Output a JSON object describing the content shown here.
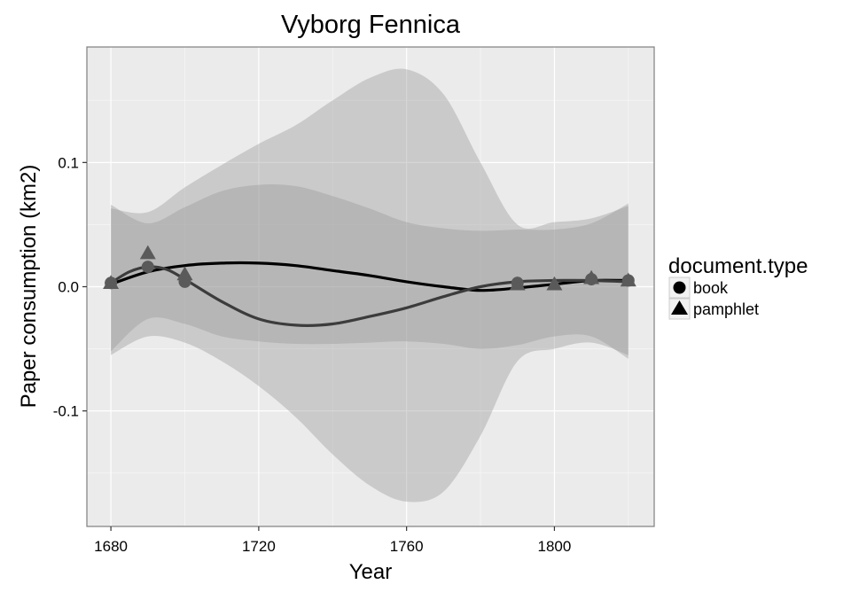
{
  "chart_data": {
    "type": "scatter",
    "title": "Vyborg Fennica",
    "xlabel": "Year",
    "ylabel": "Paper consumption (km2)",
    "xlim": [
      1673.5,
      1827
    ],
    "ylim": [
      -0.193,
      0.193
    ],
    "x_ticks": [
      1680,
      1720,
      1760,
      1800
    ],
    "x_tick_labels": [
      "1680",
      "1720",
      "1760",
      "1800"
    ],
    "y_ticks": [
      -0.1,
      0.0,
      0.1
    ],
    "y_tick_labels": [
      "-0.1",
      "0.0",
      "0.1"
    ],
    "grid": true,
    "legend": {
      "title": "document.type",
      "position": "right"
    },
    "colors": {
      "panel": "#ebebeb",
      "grid": "#ffffff",
      "outer_ribbon": "#d9d9d9",
      "inner_ribbon": "#bebebe",
      "book_line": "#000000",
      "pamphlet_line": "#3c3c3c",
      "points": "#5a5a5a"
    },
    "series": [
      {
        "name": "book",
        "shape": "circle",
        "points": [
          {
            "x": 1680,
            "y": 0.003
          },
          {
            "x": 1690,
            "y": 0.016
          },
          {
            "x": 1700,
            "y": 0.004
          },
          {
            "x": 1790,
            "y": 0.003
          },
          {
            "x": 1810,
            "y": 0.006
          },
          {
            "x": 1820,
            "y": 0.005
          }
        ],
        "smooth": [
          {
            "x": 1680,
            "y": 0.002
          },
          {
            "x": 1690,
            "y": 0.012
          },
          {
            "x": 1700,
            "y": 0.017
          },
          {
            "x": 1710,
            "y": 0.019
          },
          {
            "x": 1720,
            "y": 0.019
          },
          {
            "x": 1730,
            "y": 0.017
          },
          {
            "x": 1740,
            "y": 0.013
          },
          {
            "x": 1750,
            "y": 0.009
          },
          {
            "x": 1760,
            "y": 0.004
          },
          {
            "x": 1770,
            "y": 0.0
          },
          {
            "x": 1780,
            "y": -0.003
          },
          {
            "x": 1790,
            "y": -0.001
          },
          {
            "x": 1800,
            "y": 0.002
          },
          {
            "x": 1810,
            "y": 0.005
          },
          {
            "x": 1820,
            "y": 0.005
          }
        ],
        "ribbon": [
          {
            "x": 1680,
            "lo": -0.052,
            "hi": 0.066
          },
          {
            "x": 1690,
            "lo": -0.026,
            "hi": 0.051
          },
          {
            "x": 1700,
            "lo": -0.03,
            "hi": 0.064
          },
          {
            "x": 1710,
            "lo": -0.04,
            "hi": 0.077
          },
          {
            "x": 1720,
            "lo": -0.044,
            "hi": 0.082
          },
          {
            "x": 1730,
            "lo": -0.046,
            "hi": 0.081
          },
          {
            "x": 1740,
            "lo": -0.046,
            "hi": 0.073
          },
          {
            "x": 1750,
            "lo": -0.045,
            "hi": 0.063
          },
          {
            "x": 1760,
            "lo": -0.044,
            "hi": 0.052
          },
          {
            "x": 1770,
            "lo": -0.046,
            "hi": 0.047
          },
          {
            "x": 1780,
            "lo": -0.05,
            "hi": 0.045
          },
          {
            "x": 1790,
            "lo": -0.047,
            "hi": 0.046
          },
          {
            "x": 1800,
            "lo": -0.04,
            "hi": 0.046
          },
          {
            "x": 1810,
            "lo": -0.04,
            "hi": 0.051
          },
          {
            "x": 1820,
            "lo": -0.058,
            "hi": 0.067
          }
        ]
      },
      {
        "name": "pamphlet",
        "shape": "triangle",
        "points": [
          {
            "x": 1680,
            "y": 0.003
          },
          {
            "x": 1690,
            "y": 0.027
          },
          {
            "x": 1700,
            "y": 0.01
          },
          {
            "x": 1790,
            "y": 0.002
          },
          {
            "x": 1800,
            "y": 0.002
          },
          {
            "x": 1810,
            "y": 0.007
          },
          {
            "x": 1820,
            "y": 0.005
          }
        ],
        "smooth": [
          {
            "x": 1680,
            "y": 0.003
          },
          {
            "x": 1685,
            "y": 0.012
          },
          {
            "x": 1690,
            "y": 0.016
          },
          {
            "x": 1695,
            "y": 0.014
          },
          {
            "x": 1700,
            "y": 0.006
          },
          {
            "x": 1710,
            "y": -0.012
          },
          {
            "x": 1720,
            "y": -0.026
          },
          {
            "x": 1730,
            "y": -0.031
          },
          {
            "x": 1740,
            "y": -0.03
          },
          {
            "x": 1750,
            "y": -0.024
          },
          {
            "x": 1760,
            "y": -0.017
          },
          {
            "x": 1770,
            "y": -0.008
          },
          {
            "x": 1780,
            "y": 0.0
          },
          {
            "x": 1790,
            "y": 0.004
          },
          {
            "x": 1800,
            "y": 0.005
          },
          {
            "x": 1810,
            "y": 0.005
          },
          {
            "x": 1820,
            "y": 0.004
          }
        ],
        "ribbon": [
          {
            "x": 1680,
            "lo": -0.055,
            "hi": 0.063
          },
          {
            "x": 1690,
            "lo": -0.04,
            "hi": 0.06
          },
          {
            "x": 1700,
            "lo": -0.045,
            "hi": 0.08
          },
          {
            "x": 1710,
            "lo": -0.06,
            "hi": 0.098
          },
          {
            "x": 1720,
            "lo": -0.08,
            "hi": 0.115
          },
          {
            "x": 1730,
            "lo": -0.105,
            "hi": 0.13
          },
          {
            "x": 1740,
            "lo": -0.135,
            "hi": 0.15
          },
          {
            "x": 1750,
            "lo": -0.16,
            "hi": 0.168
          },
          {
            "x": 1760,
            "lo": -0.173,
            "hi": 0.175
          },
          {
            "x": 1770,
            "lo": -0.165,
            "hi": 0.155
          },
          {
            "x": 1780,
            "lo": -0.12,
            "hi": 0.1
          },
          {
            "x": 1790,
            "lo": -0.06,
            "hi": 0.05
          },
          {
            "x": 1800,
            "lo": -0.05,
            "hi": 0.052
          },
          {
            "x": 1810,
            "lo": -0.045,
            "hi": 0.055
          },
          {
            "x": 1820,
            "lo": -0.055,
            "hi": 0.065
          }
        ]
      }
    ]
  }
}
